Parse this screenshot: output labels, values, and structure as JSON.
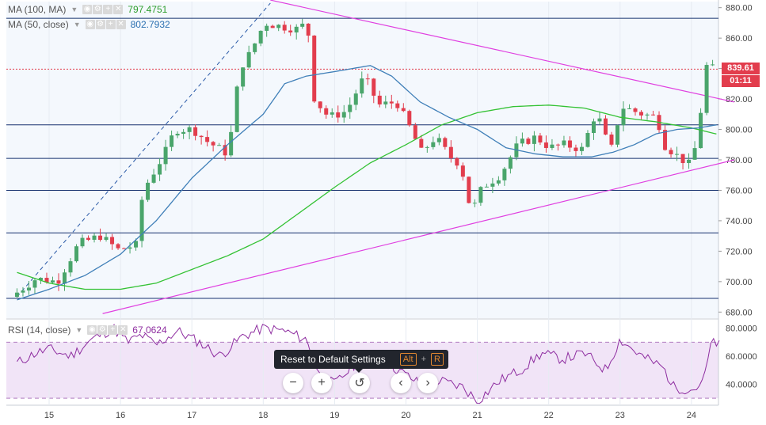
{
  "indicators": [
    {
      "name": "MA (100, MA)",
      "value": "797.4751",
      "color": "#2e9e2e"
    },
    {
      "name": "MA (50, close)",
      "value": "802.7932",
      "color": "#2a6fb0"
    }
  ],
  "rsi": {
    "name": "RSI (14, close)",
    "value": "67.0624",
    "color": "#8e2da0"
  },
  "price_badge": {
    "value": "839.61",
    "timer": "01:11",
    "color": "#e23d4d"
  },
  "tooltip": {
    "text": "Reset to Default Settings",
    "key1": "Alt",
    "plus": "+",
    "key2": "R"
  },
  "controls": {
    "zoom_out": "−",
    "zoom_in": "+",
    "reset": "↺",
    "prev": "‹",
    "next": "›"
  },
  "colors": {
    "up": "#4aa56b",
    "down": "#e23d4d",
    "trend": "#e040e0",
    "grid": "#16316e",
    "ma100": "#34c234",
    "ma50": "#3f7fb8",
    "rsi": "#8e2da0"
  },
  "chart_data": {
    "type": "candlestick",
    "x_ticks": [
      "15",
      "16",
      "17",
      "18",
      "19",
      "20",
      "21",
      "22",
      "23",
      "24"
    ],
    "price_ticks": [
      "880.00",
      "860.00",
      "840.00",
      "820.00",
      "800.00",
      "780.00",
      "760.00",
      "740.00",
      "720.00",
      "700.00",
      "680.00"
    ],
    "price_range": [
      676,
      884
    ],
    "horizontal_levels": [
      873,
      803,
      781,
      760,
      732,
      689
    ],
    "last_price": 839.61,
    "trendlines": [
      {
        "from": [
          18.1,
          885
        ],
        "to": [
          24.6,
          818
        ]
      },
      {
        "from": [
          15.75,
          679
        ],
        "to": [
          24.6,
          780
        ]
      }
    ],
    "ohlc_anchors": [
      [
        14.55,
        690
      ],
      [
        14.9,
        702
      ],
      [
        15.2,
        700
      ],
      [
        15.5,
        725
      ],
      [
        15.8,
        730
      ],
      [
        16.05,
        721
      ],
      [
        16.3,
        724
      ],
      [
        16.4,
        760
      ],
      [
        16.7,
        784
      ],
      [
        16.85,
        800
      ],
      [
        17.1,
        800
      ],
      [
        17.3,
        792
      ],
      [
        17.55,
        785
      ],
      [
        17.65,
        800
      ],
      [
        17.75,
        840
      ],
      [
        17.9,
        850
      ],
      [
        18.1,
        870
      ],
      [
        18.3,
        868
      ],
      [
        18.55,
        866
      ],
      [
        18.7,
        870
      ],
      [
        18.8,
        820
      ],
      [
        19.0,
        808
      ],
      [
        19.25,
        812
      ],
      [
        19.5,
        835
      ],
      [
        19.7,
        816
      ],
      [
        19.95,
        818
      ],
      [
        20.15,
        800
      ],
      [
        20.3,
        785
      ],
      [
        20.5,
        795
      ],
      [
        20.7,
        782
      ],
      [
        20.85,
        777
      ],
      [
        21.0,
        745
      ],
      [
        21.15,
        762
      ],
      [
        21.4,
        770
      ],
      [
        21.65,
        790
      ],
      [
        21.9,
        795
      ],
      [
        22.1,
        788
      ],
      [
        22.3,
        790
      ],
      [
        22.55,
        787
      ],
      [
        22.75,
        812
      ],
      [
        22.95,
        785
      ],
      [
        23.1,
        815
      ],
      [
        23.4,
        810
      ],
      [
        23.6,
        808
      ],
      [
        23.7,
        790
      ],
      [
        23.9,
        782
      ],
      [
        24.05,
        777
      ],
      [
        24.15,
        790
      ],
      [
        24.25,
        825
      ],
      [
        24.3,
        843
      ],
      [
        24.35,
        840
      ]
    ],
    "ma100_anchors": [
      [
        14.55,
        706
      ],
      [
        15.0,
        699
      ],
      [
        15.5,
        695
      ],
      [
        16.0,
        695
      ],
      [
        16.5,
        699
      ],
      [
        17.0,
        708
      ],
      [
        17.5,
        717
      ],
      [
        18.0,
        728
      ],
      [
        18.5,
        745
      ],
      [
        19.0,
        762
      ],
      [
        19.5,
        778
      ],
      [
        20.0,
        790
      ],
      [
        20.5,
        803
      ],
      [
        21.0,
        811
      ],
      [
        21.5,
        815
      ],
      [
        22.0,
        816
      ],
      [
        22.5,
        814
      ],
      [
        23.0,
        808
      ],
      [
        23.5,
        805
      ],
      [
        24.0,
        801
      ],
      [
        24.35,
        797
      ]
    ],
    "ma50_anchors": [
      [
        14.55,
        688
      ],
      [
        15.0,
        695
      ],
      [
        15.5,
        704
      ],
      [
        16.0,
        718
      ],
      [
        16.5,
        740
      ],
      [
        17.0,
        768
      ],
      [
        17.5,
        790
      ],
      [
        18.0,
        810
      ],
      [
        18.3,
        830
      ],
      [
        18.6,
        835
      ],
      [
        19.0,
        838
      ],
      [
        19.5,
        842
      ],
      [
        19.8,
        835
      ],
      [
        20.2,
        818
      ],
      [
        20.6,
        808
      ],
      [
        21.0,
        800
      ],
      [
        21.4,
        788
      ],
      [
        21.8,
        784
      ],
      [
        22.2,
        782
      ],
      [
        22.6,
        782
      ],
      [
        22.9,
        785
      ],
      [
        23.2,
        790
      ],
      [
        23.5,
        797
      ],
      [
        23.8,
        800
      ],
      [
        24.1,
        801
      ],
      [
        24.35,
        803
      ]
    ],
    "rsi_ticks": [
      "80.0000",
      "60.0000",
      "40.0000"
    ],
    "rsi_range": [
      25,
      86
    ],
    "rsi_bands": [
      70,
      30
    ],
    "rsi_anchors": [
      [
        14.55,
        55
      ],
      [
        14.8,
        62
      ],
      [
        15.0,
        65
      ],
      [
        15.3,
        60
      ],
      [
        15.6,
        72
      ],
      [
        15.9,
        80
      ],
      [
        16.1,
        70
      ],
      [
        16.3,
        75
      ],
      [
        16.5,
        68
      ],
      [
        16.8,
        78
      ],
      [
        17.1,
        70
      ],
      [
        17.4,
        60
      ],
      [
        17.7,
        74
      ],
      [
        18.0,
        80
      ],
      [
        18.3,
        78
      ],
      [
        18.6,
        72
      ],
      [
        18.8,
        45
      ],
      [
        19.0,
        40
      ],
      [
        19.3,
        55
      ],
      [
        19.6,
        58
      ],
      [
        19.9,
        50
      ],
      [
        20.2,
        40
      ],
      [
        20.5,
        42
      ],
      [
        20.8,
        38
      ],
      [
        21.0,
        28
      ],
      [
        21.3,
        42
      ],
      [
        21.6,
        50
      ],
      [
        21.9,
        62
      ],
      [
        22.2,
        58
      ],
      [
        22.5,
        62
      ],
      [
        22.8,
        50
      ],
      [
        23.0,
        72
      ],
      [
        23.3,
        60
      ],
      [
        23.6,
        52
      ],
      [
        23.75,
        38
      ],
      [
        24.0,
        36
      ],
      [
        24.15,
        40
      ],
      [
        24.3,
        72
      ],
      [
        24.4,
        67
      ]
    ]
  }
}
